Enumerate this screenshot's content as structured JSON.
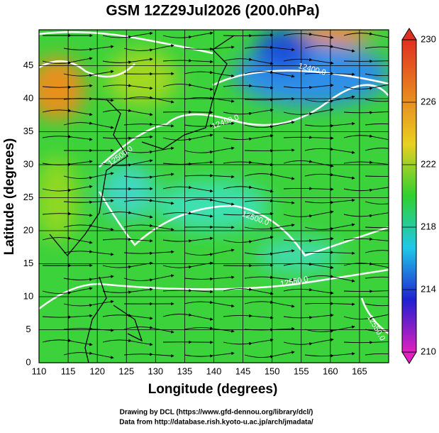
{
  "chart_data": {
    "type": "map",
    "title": "GSM 12Z29Jul2026 (200.0hPa)",
    "x_label": "Longitude (degrees)",
    "y_label": "Latitude (degrees)",
    "xlim": [
      110,
      170
    ],
    "ylim": [
      0,
      50
    ],
    "xticks": [
      110,
      115,
      120,
      125,
      130,
      135,
      140,
      145,
      150,
      155,
      160,
      165
    ],
    "yticks": [
      0,
      5,
      10,
      15,
      20,
      25,
      30,
      35,
      40,
      45
    ],
    "grid": true,
    "contour_labels": [
      "12500.0",
      "12450.0",
      "12400.0",
      "12500.0",
      "12550.0",
      "12550.0"
    ],
    "colorbar": {
      "lim": [
        210,
        230
      ],
      "ticks": [
        210,
        214,
        218,
        222,
        226,
        230
      ],
      "colors": [
        "#e020c0",
        "#2020d0",
        "#20c8e8",
        "#30d030",
        "#e8d020",
        "#e88020",
        "#e03020"
      ]
    },
    "credits": [
      "Drawing by DCL (https://www.gfd-dennou.org/library/dcl/)",
      "Data from http://database.rish.kyoto-u.ac.jp/arch/jmadata/"
    ]
  }
}
